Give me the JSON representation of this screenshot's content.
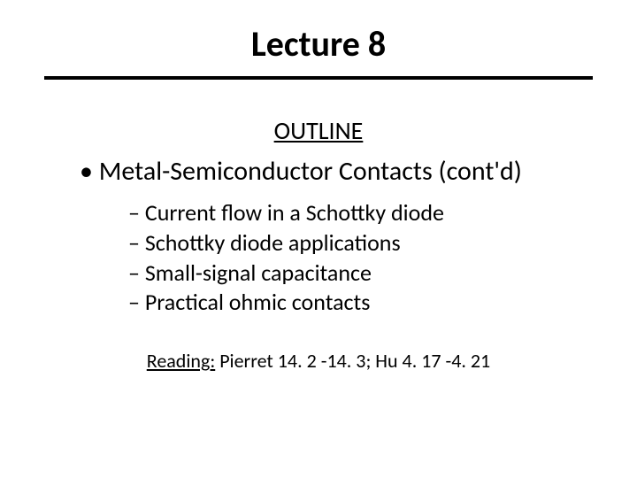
{
  "title": "Lecture 8",
  "outline_heading": "OUTLINE",
  "main_bullet": "Metal-Semiconductor Contacts (cont'd)",
  "sub_bullets": [
    "Current flow in a Schottky diode",
    "Schottky diode applications",
    "Small-signal capacitance",
    "Practical ohmic contacts"
  ],
  "reading_label": "Reading:",
  "reading_text": " Pierret 14. 2 -14. 3; Hu 4. 17 -4. 21",
  "styles": {
    "background_color": "#ffffff",
    "text_color": "#000000",
    "font_family": "Calibri",
    "title_fontsize": 40,
    "title_fontweight": "bold",
    "title_border_bottom_width": 4,
    "title_border_color": "#000000",
    "outline_heading_fontsize": 28,
    "outline_heading_decoration": "underline",
    "main_bullet_fontsize": 30,
    "sub_bullet_fontsize": 26,
    "reading_fontsize": 22,
    "reading_label_decoration": "underline",
    "slide_width": 720,
    "slide_height": 540
  }
}
